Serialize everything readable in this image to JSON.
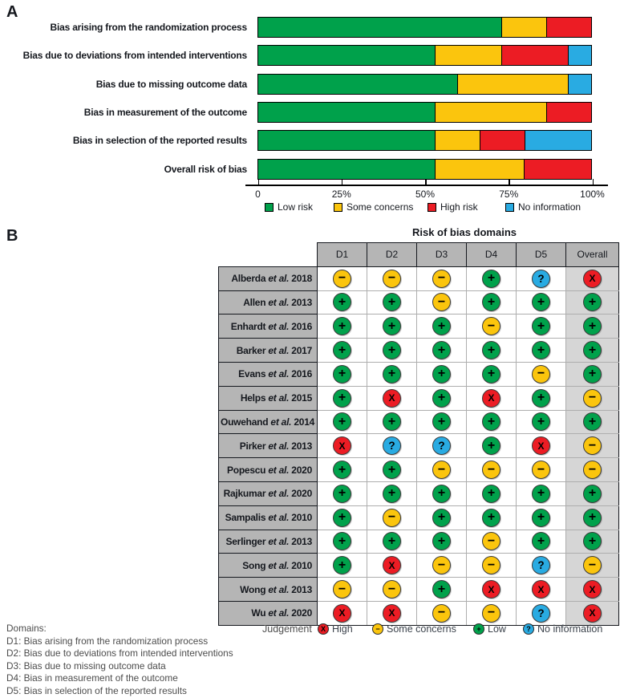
{
  "colors": {
    "low": "#00a14b",
    "some": "#fbc50d",
    "high": "#ec1c24",
    "noinfo": "#29abe2",
    "header_gray": "#b5b5b5",
    "overall_gray": "#d6d6d6"
  },
  "panel_a": {
    "letter": "A",
    "chart_data": {
      "type": "bar",
      "stacked": true,
      "orientation": "horizontal",
      "categories": [
        "Bias arising from the randomization process",
        "Bias due to deviations from intended interventions",
        "Bias due to missing outcome data",
        "Bias in measurement of the outcome",
        "Bias in selection of the reported results",
        "Overall risk of bias"
      ],
      "series": [
        {
          "name": "Low risk",
          "color_key": "low",
          "values": [
            73.3,
            53.3,
            60.0,
            53.3,
            53.3,
            53.3
          ]
        },
        {
          "name": "Some concerns",
          "color_key": "some",
          "values": [
            13.3,
            20.0,
            33.3,
            33.3,
            13.3,
            26.7
          ]
        },
        {
          "name": "High risk",
          "color_key": "high",
          "values": [
            13.3,
            20.0,
            0.0,
            13.3,
            13.3,
            20.0
          ]
        },
        {
          "name": "No information",
          "color_key": "noinfo",
          "values": [
            0.0,
            6.7,
            6.7,
            0.0,
            20.0,
            0.0
          ]
        }
      ],
      "xlim": [
        0,
        100
      ],
      "x_ticks": [
        {
          "label": "0",
          "pos": 0
        },
        {
          "label": "25%",
          "pos": 25
        },
        {
          "label": "50%",
          "pos": 50
        },
        {
          "label": "75%",
          "pos": 75
        },
        {
          "label": "100%",
          "pos": 100
        }
      ],
      "legend_position": "bottom"
    }
  },
  "panel_b": {
    "letter": "B",
    "title": "Risk of bias domains",
    "columns": [
      "D1",
      "D2",
      "D3",
      "D4",
      "D5",
      "Overall"
    ],
    "judgements": {
      "low": {
        "label": "Low",
        "symbol": "+"
      },
      "some": {
        "label": "Some concerns",
        "symbol": "−"
      },
      "high": {
        "label": "High",
        "symbol": "X"
      },
      "noinfo": {
        "label": "No information",
        "symbol": "?"
      }
    },
    "rows": [
      {
        "study": "Alberda",
        "etal": "et al.",
        "year": "2018",
        "ratings": [
          "some",
          "some",
          "some",
          "low",
          "noinfo",
          "high"
        ]
      },
      {
        "study": "Allen",
        "etal": "et al.",
        "year": "2013",
        "ratings": [
          "low",
          "low",
          "some",
          "low",
          "low",
          "low"
        ]
      },
      {
        "study": "Enhardt",
        "etal": "et al.",
        "year": "2016",
        "ratings": [
          "low",
          "low",
          "low",
          "some",
          "low",
          "low"
        ]
      },
      {
        "study": "Barker",
        "etal": "et al.",
        "year": "2017",
        "ratings": [
          "low",
          "low",
          "low",
          "low",
          "low",
          "low"
        ]
      },
      {
        "study": "Evans",
        "etal": "et al.",
        "year": "2016",
        "ratings": [
          "low",
          "low",
          "low",
          "low",
          "some",
          "low"
        ]
      },
      {
        "study": "Helps",
        "etal": "et al.",
        "year": "2015",
        "ratings": [
          "low",
          "high",
          "low",
          "high",
          "low",
          "some"
        ]
      },
      {
        "study": "Ouwehand",
        "etal": "et al.",
        "year": "2014",
        "ratings": [
          "low",
          "low",
          "low",
          "low",
          "low",
          "low"
        ]
      },
      {
        "study": "Pirker",
        "etal": "et al.",
        "year": "2013",
        "ratings": [
          "high",
          "noinfo",
          "noinfo",
          "low",
          "high",
          "some"
        ]
      },
      {
        "study": "Popescu",
        "etal": "et al.",
        "year": "2020",
        "ratings": [
          "low",
          "low",
          "some",
          "some",
          "some",
          "some"
        ]
      },
      {
        "study": "Rajkumar",
        "etal": "et al.",
        "year": "2020",
        "ratings": [
          "low",
          "low",
          "low",
          "low",
          "low",
          "low"
        ]
      },
      {
        "study": "Sampalis",
        "etal": "et al.",
        "year": "2010",
        "ratings": [
          "low",
          "some",
          "low",
          "low",
          "low",
          "low"
        ]
      },
      {
        "study": "Serlinger",
        "etal": "et al.",
        "year": "2013",
        "ratings": [
          "low",
          "low",
          "low",
          "some",
          "low",
          "low"
        ]
      },
      {
        "study": "Song",
        "etal": "et al.",
        "year": "2010",
        "ratings": [
          "low",
          "high",
          "some",
          "some",
          "noinfo",
          "some"
        ]
      },
      {
        "study": "Wong",
        "etal": "et al.",
        "year": "2013",
        "ratings": [
          "some",
          "some",
          "low",
          "high",
          "high",
          "high"
        ]
      },
      {
        "study": "Wu",
        "etal": "et al.",
        "year": "2020",
        "ratings": [
          "high",
          "high",
          "some",
          "some",
          "noinfo",
          "high"
        ]
      }
    ],
    "legend": {
      "title": "Judgement",
      "items": [
        "high",
        "some",
        "low",
        "noinfo"
      ]
    },
    "footnote": {
      "title": "Domains:",
      "lines": [
        "D1: Bias arising from the randomization process",
        "D2: Bias due to deviations from intended interventions",
        "D3: Bias due to missing outcome data",
        "D4: Bias in measurement of the outcome",
        "D5: Bias in selection of the reported results"
      ]
    }
  }
}
